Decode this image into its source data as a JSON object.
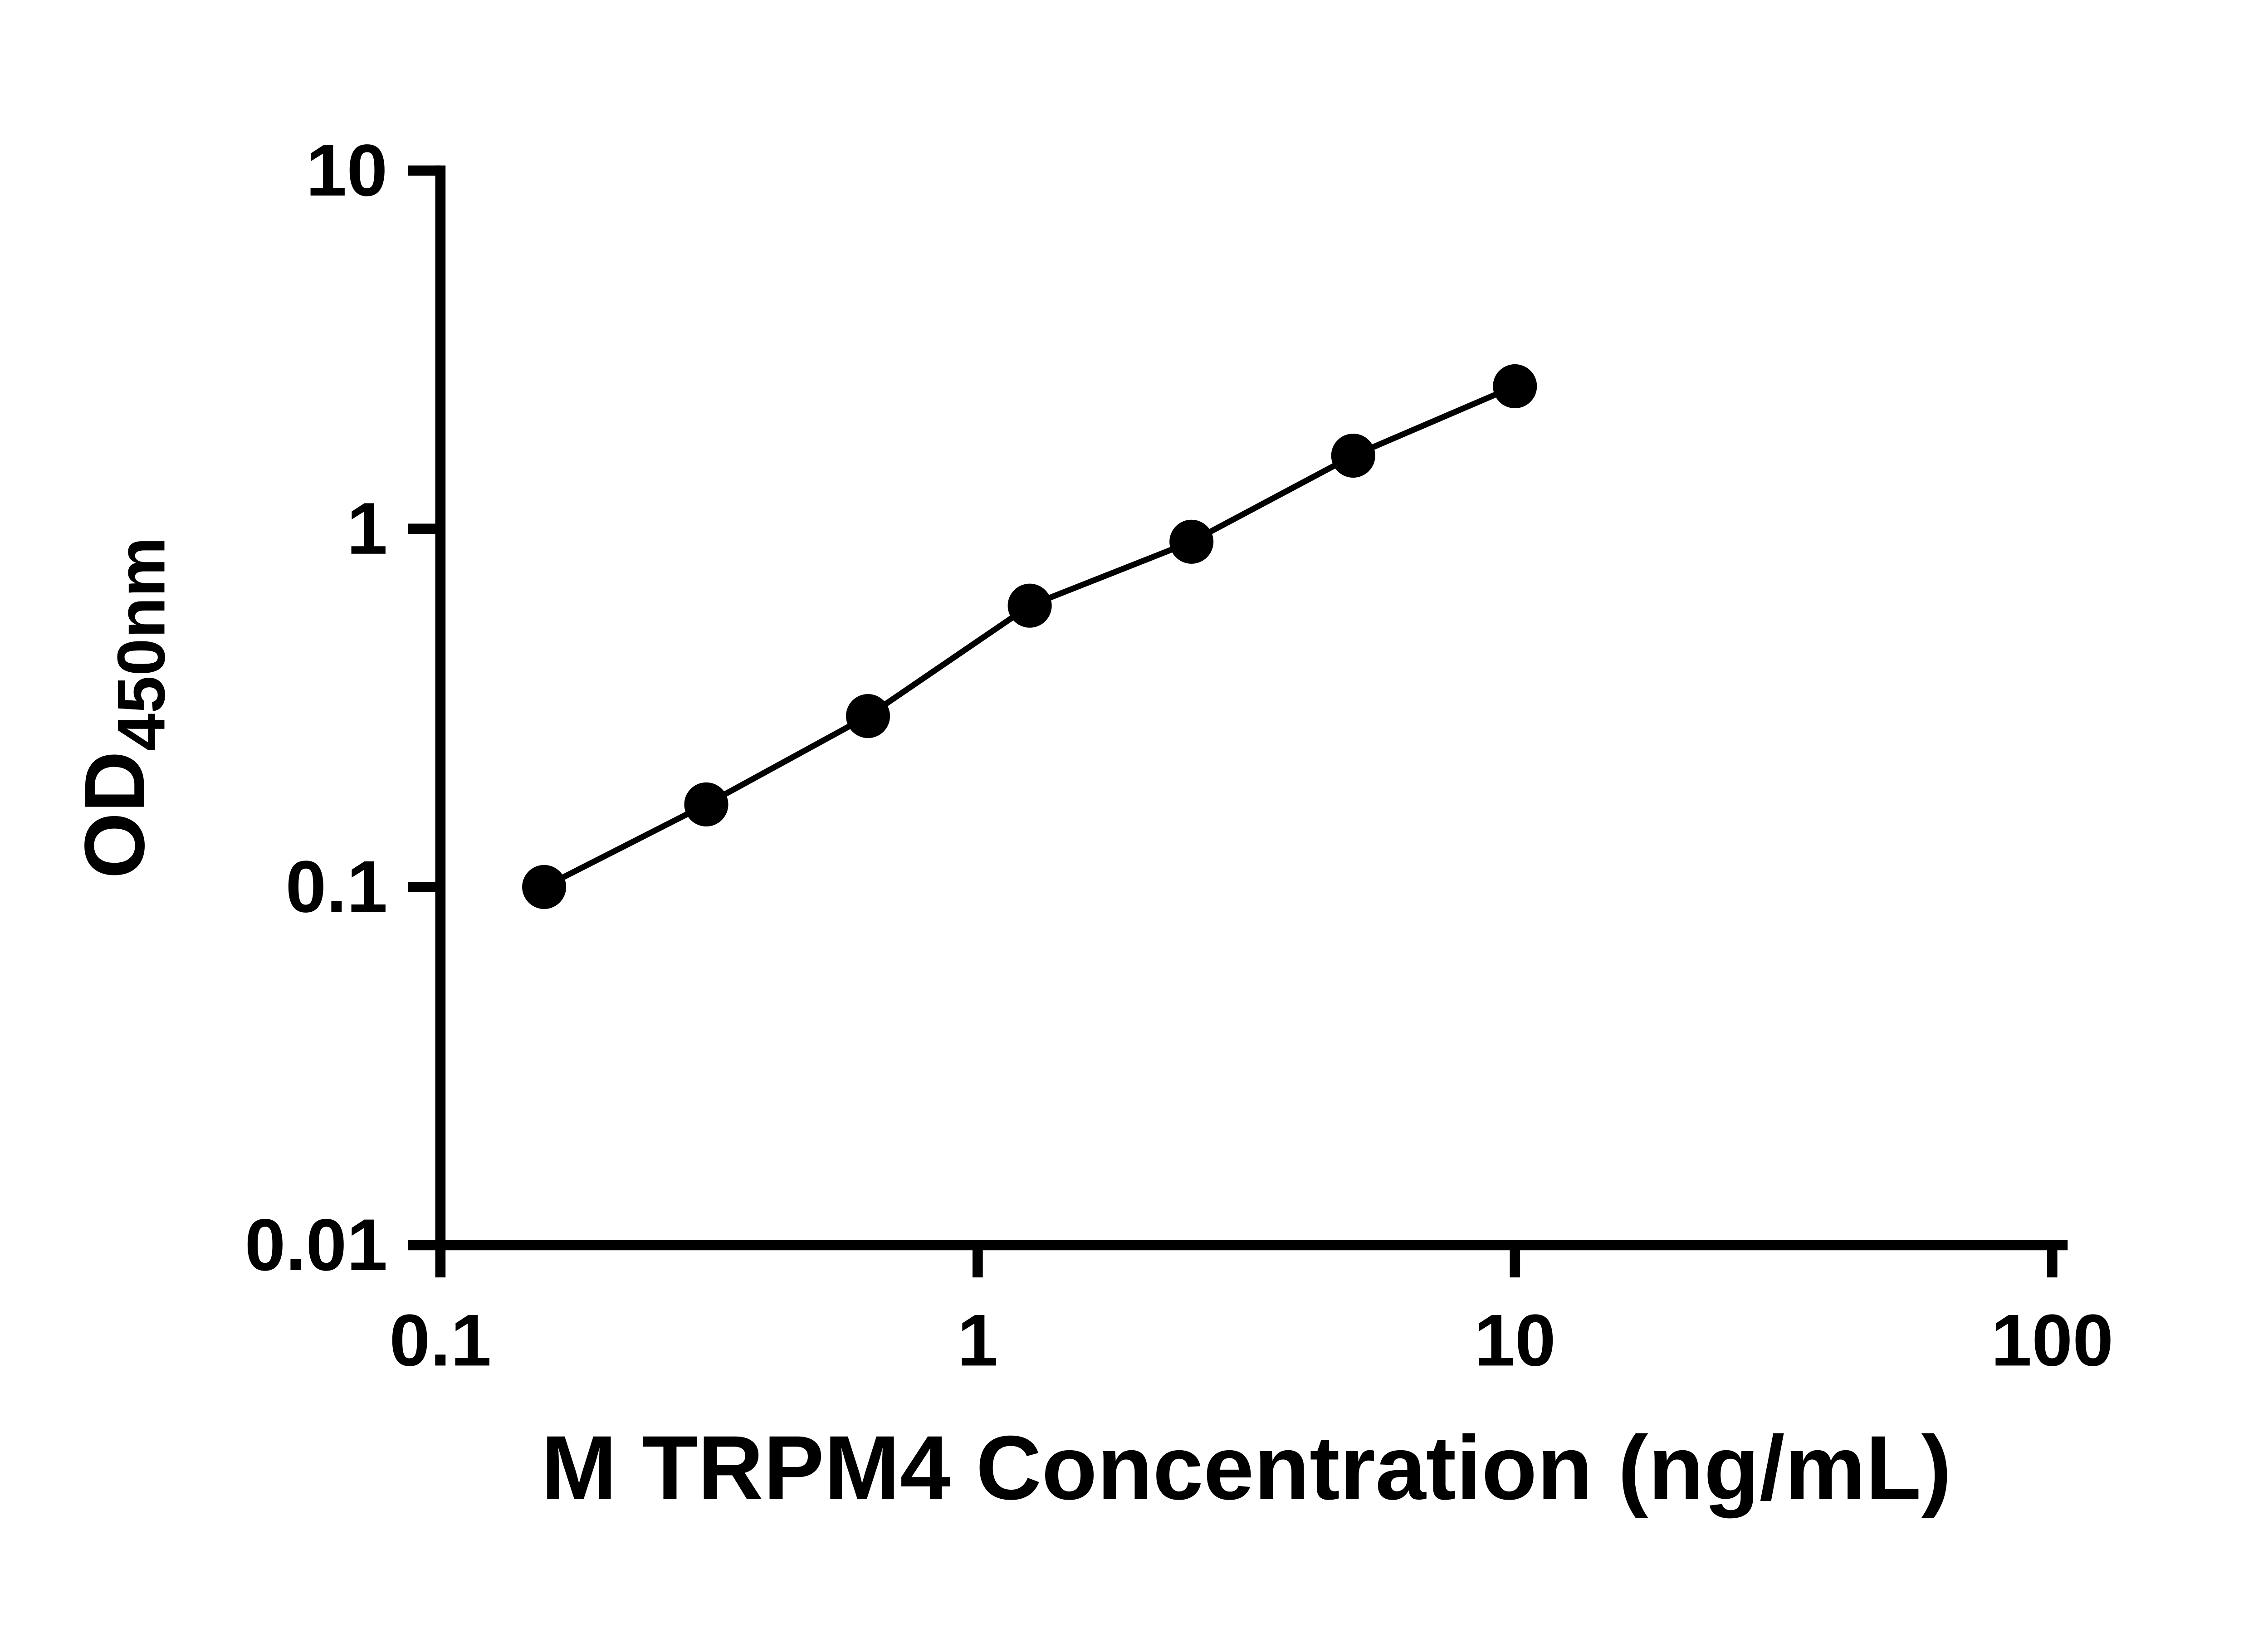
{
  "chart_data": {
    "type": "line",
    "title": "",
    "xlabel": "M TRPM4 Concentration (ng/mL)",
    "ylabel_main": "OD",
    "ylabel_sub": "450nm",
    "xscale": "log",
    "yscale": "log",
    "xlim": [
      0.1,
      100
    ],
    "ylim": [
      0.01,
      10
    ],
    "xticks": [
      "0.1",
      "1",
      "10",
      "100"
    ],
    "yticks": [
      "0.01",
      "0.1",
      "1",
      "10"
    ],
    "x": [
      0.156,
      0.3125,
      0.625,
      1.25,
      2.5,
      5,
      10
    ],
    "y": [
      0.1,
      0.17,
      0.3,
      0.61,
      0.92,
      1.6,
      2.5
    ],
    "grid": false,
    "legend": false,
    "marker": "circle",
    "marker_color": "#000000",
    "line_color": "#000000",
    "axis_color": "#000000",
    "background_color": "#ffffff"
  }
}
